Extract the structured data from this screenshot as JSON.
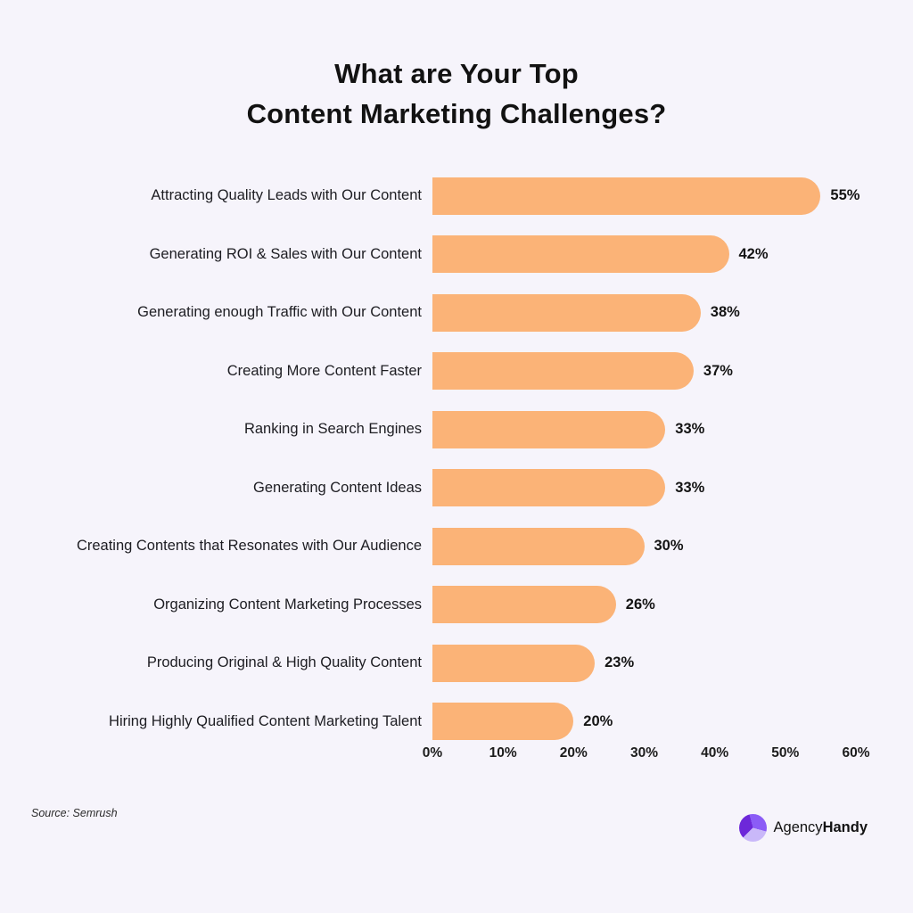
{
  "title": {
    "line1": "What are Your Top",
    "line2": "Content Marketing Challenges?"
  },
  "chart_data": {
    "type": "bar",
    "orientation": "horizontal",
    "title": "What are Your Top Content Marketing Challenges?",
    "xlabel": "",
    "ylabel": "",
    "categories": [
      "Attracting Quality Leads with Our Content",
      "Generating ROI & Sales with Our Content",
      "Generating enough Traffic with Our Content",
      "Creating More Content Faster",
      "Ranking in Search Engines",
      "Generating Content Ideas",
      "Creating Contents that Resonates with Our Audience",
      "Organizing Content Marketing Processes",
      "Producing Original & High Quality Content",
      "Hiring Highly Qualified Content Marketing Talent"
    ],
    "values": [
      55,
      42,
      38,
      37,
      33,
      33,
      30,
      26,
      23,
      20
    ],
    "value_labels": [
      "55%",
      "42%",
      "38%",
      "37%",
      "33%",
      "33%",
      "30%",
      "26%",
      "23%",
      "20%"
    ],
    "axis": {
      "ticks": [
        "0%",
        "10%",
        "20%",
        "30%",
        "40%",
        "50%",
        "60%"
      ],
      "min": 0,
      "max": 60,
      "grid": false,
      "axis_line": false
    },
    "bar_color": "#FBB377",
    "background": "#F6F4FB",
    "text_color": "#1d1d22"
  },
  "source": "Source: Semrush",
  "brand": {
    "name_regular": "Agency",
    "name_bold": "Handy",
    "icon_colors": [
      "#6D28D9",
      "#8B5CF6",
      "#C9B8F9"
    ]
  }
}
